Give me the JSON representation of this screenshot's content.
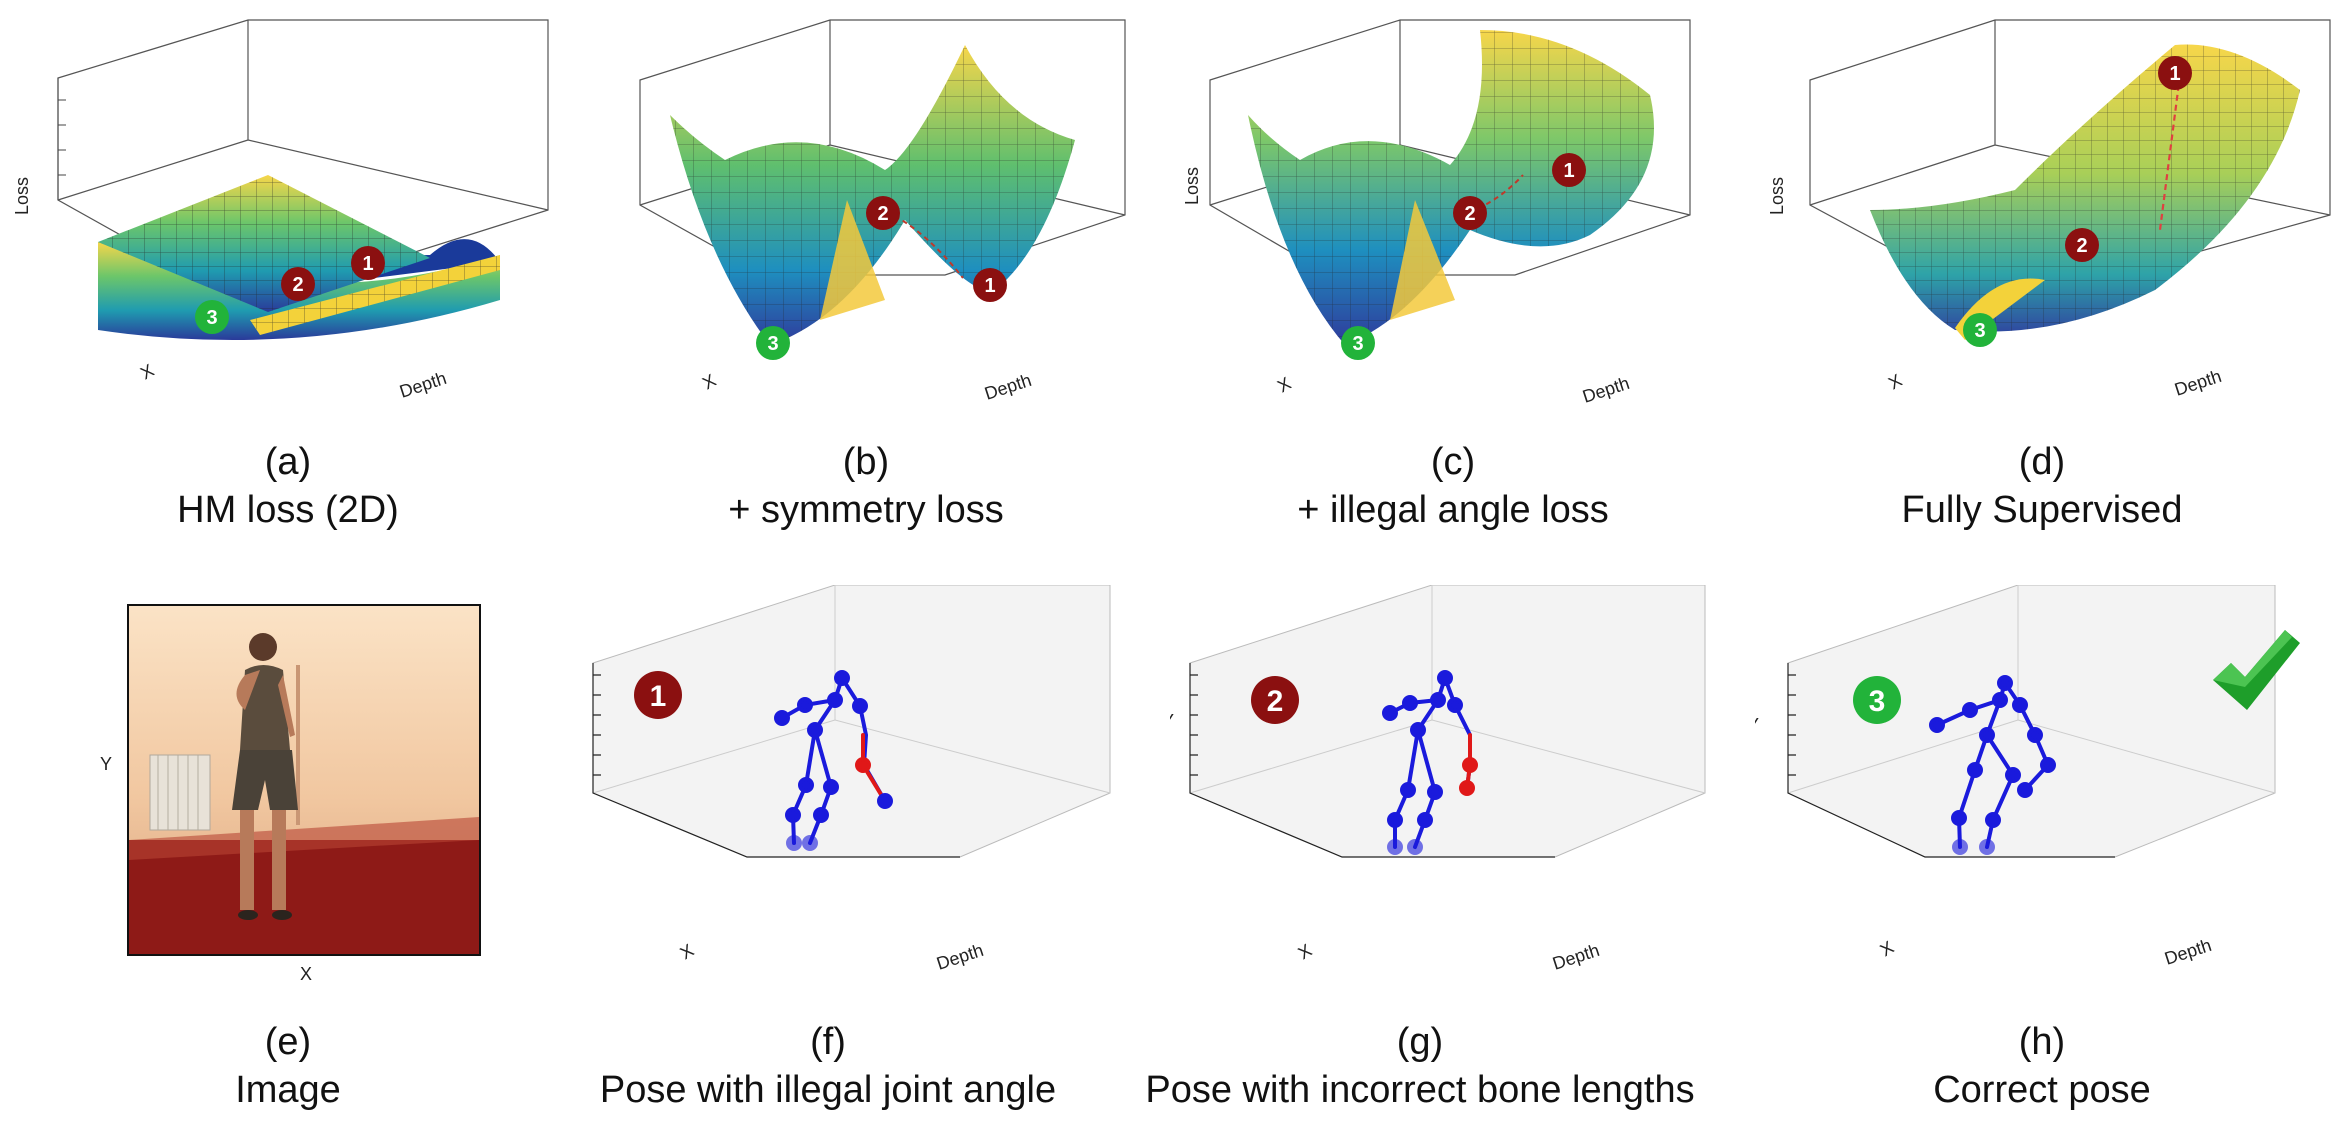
{
  "labels": {
    "loss": "Loss",
    "x": "X",
    "y": "Y",
    "depth": "Depth"
  },
  "top_panels": [
    {
      "letter": "(a)",
      "title": "HM loss (2D)"
    },
    {
      "letter": "(b)",
      "title": "+ symmetry loss"
    },
    {
      "letter": "(c)",
      "title": "+ illegal angle loss"
    },
    {
      "letter": "(d)",
      "title": "Fully Supervised"
    }
  ],
  "bottom_panels": [
    {
      "letter": "(e)",
      "title": "Image"
    },
    {
      "letter": "(f)",
      "title": "Pose with illegal joint angle",
      "marker": "1"
    },
    {
      "letter": "(g)",
      "title": "Pose with incorrect bone lengths",
      "marker": "2"
    },
    {
      "letter": "(h)",
      "title": "Correct pose",
      "marker": "3"
    }
  ],
  "markers": [
    "1",
    "2",
    "3"
  ],
  "colors": {
    "marker_red": "#8b1010",
    "marker_green": "#22b33a",
    "skeleton": "#1a1adc",
    "illegal_bone": "#e01818",
    "check": "#1e9e2a"
  }
}
